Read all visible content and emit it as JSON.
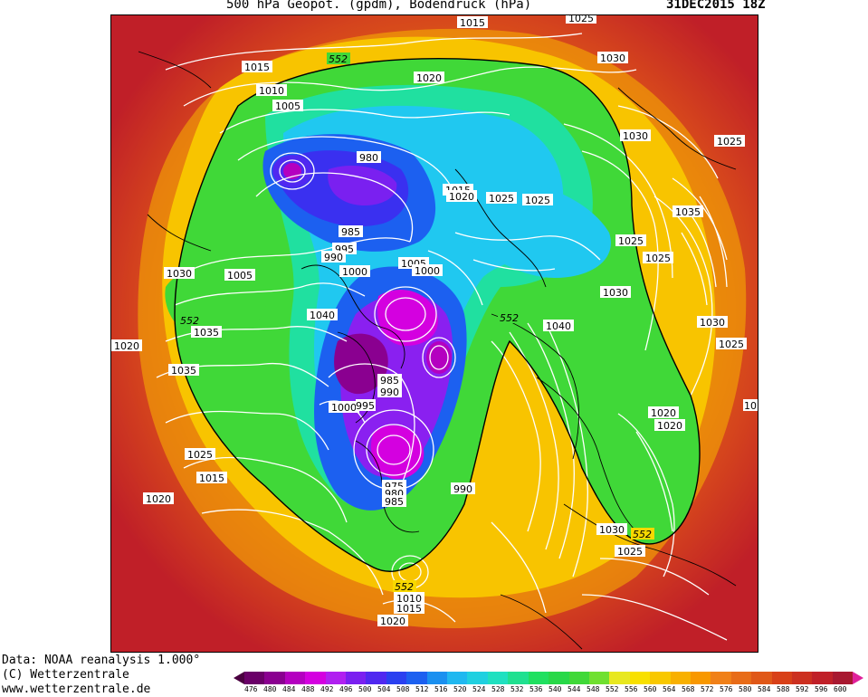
{
  "header": {
    "title": "500 hPa Geopot. (gpdm), Bodendruck (hPa)",
    "datetime": "31DEC2015 18Z"
  },
  "footer": {
    "line1": "Data: NOAA reanalysis 1.000°",
    "line2": "(C) Wetterzentrale",
    "line3": "www.wetterzentrale.de"
  },
  "colorbar": {
    "labels": [
      "476",
      "480",
      "484",
      "488",
      "492",
      "496",
      "500",
      "504",
      "508",
      "512",
      "516",
      "520",
      "524",
      "528",
      "532",
      "536",
      "540",
      "544",
      "548",
      "552",
      "556",
      "560",
      "564",
      "568",
      "572",
      "576",
      "580",
      "584",
      "588",
      "592",
      "596",
      "600"
    ],
    "colors": [
      "#4a0040",
      "#6a0068",
      "#8a0090",
      "#b400c0",
      "#d400e0",
      "#b020f0",
      "#7a20f0",
      "#5028f0",
      "#2a40f0",
      "#1c60f0",
      "#1a90f0",
      "#20b8f0",
      "#20d0e0",
      "#20e0c0",
      "#20e090",
      "#20e060",
      "#28d848",
      "#40d838",
      "#70e030",
      "#e8e820",
      "#f8e000",
      "#f8c800",
      "#f8b000",
      "#f89800",
      "#f08018",
      "#e86c18",
      "#e05818",
      "#d84018",
      "#cc3020",
      "#c02028",
      "#a81830",
      "#e0209a"
    ]
  },
  "map": {
    "isobar_labels": [
      "1015",
      "1025",
      "1030",
      "1015",
      "1020",
      "1010",
      "1005",
      "980",
      "1015",
      "1020",
      "1025",
      "1025",
      "1030",
      "1025",
      "1035",
      "985",
      "995",
      "990",
      "1000",
      "1005",
      "1000",
      "1025",
      "1030",
      "1025",
      "1030",
      "1005",
      "1040",
      "1035",
      "1040",
      "1020",
      "1035",
      "985",
      "990",
      "1000",
      "995",
      "1020",
      "975",
      "980",
      "985",
      "990",
      "1030",
      "1025",
      "1025",
      "1020",
      "1010",
      "1015",
      "1020",
      "1015",
      "1030",
      "1025",
      "1020",
      "10"
    ],
    "height_labels": [
      "552",
      "552",
      "552",
      "552",
      "552"
    ]
  }
}
